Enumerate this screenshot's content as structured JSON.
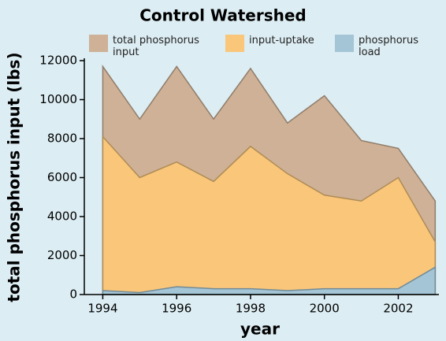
{
  "chart_data": {
    "type": "area",
    "title": "Control Watershed",
    "x_label": "year",
    "y_label": "total phosphorus input (lbs)",
    "x": [
      1994,
      1995,
      1996,
      1997,
      1998,
      1999,
      2000,
      2001,
      2002,
      2003
    ],
    "series": [
      {
        "name": "total phosphorus input",
        "color": "#ceb196",
        "values": [
          11700,
          9000,
          11700,
          9000,
          11600,
          8800,
          10200,
          7900,
          7500,
          4800
        ]
      },
      {
        "name": "input-uptake",
        "color": "#f9c67a",
        "values": [
          8100,
          6000,
          6800,
          5800,
          7600,
          6200,
          5100,
          4800,
          6000,
          2700
        ]
      },
      {
        "name": "phosphorus load",
        "color": "#a3c5d6",
        "values": [
          200,
          100,
          400,
          300,
          300,
          200,
          300,
          300,
          300,
          1400
        ]
      }
    ],
    "xlim": [
      1993.5,
      2003.1
    ],
    "xticks": [
      1994,
      1996,
      1998,
      2000,
      2002
    ],
    "ylim": [
      0,
      12000
    ],
    "yticks": [
      0,
      2000,
      4000,
      6000,
      8000,
      10000,
      12000
    ]
  }
}
